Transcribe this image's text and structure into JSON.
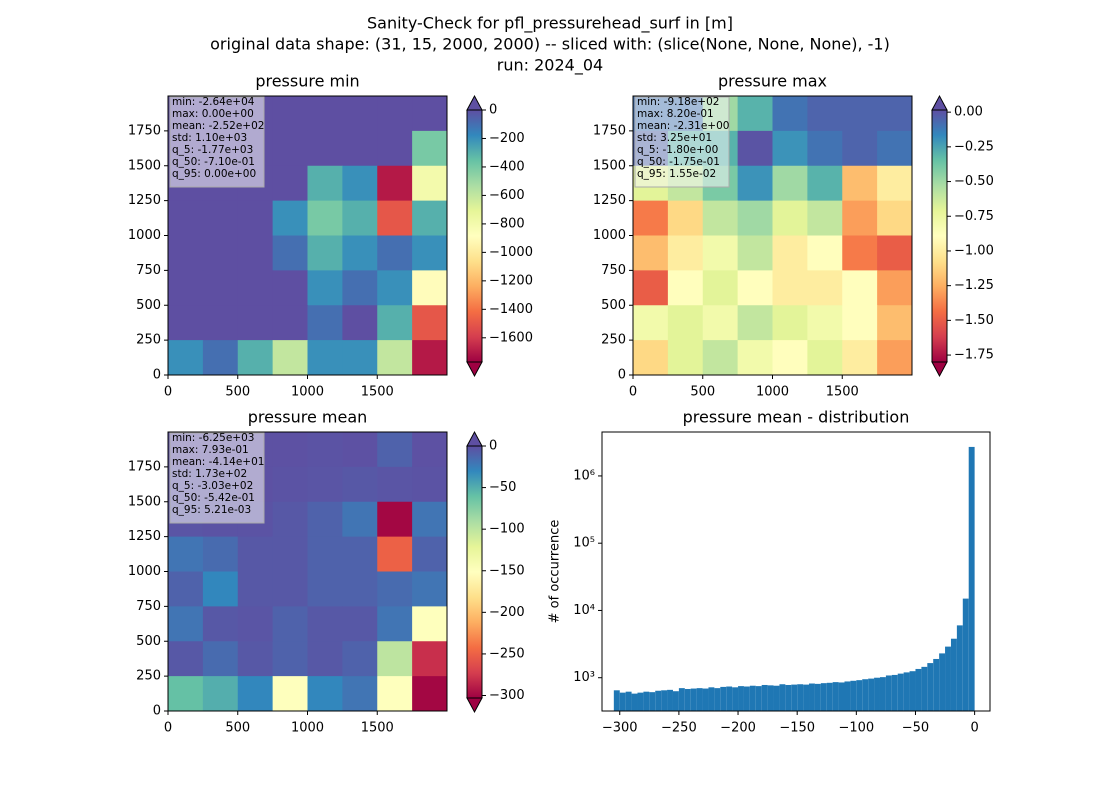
{
  "suptitle": [
    "Sanity-Check for pfl_pressurehead_surf in [m]",
    "original data shape: (31, 15, 2000, 2000) -- sliced with: (slice(None, None, None), -1)",
    "run: 2024_04"
  ],
  "chart_data": [
    {
      "type": "heatmap",
      "title": "pressure min",
      "stats": [
        "min: -2.64e+04",
        "max: 0.00e+00",
        "mean: -2.52e+02",
        "std: 1.10e+03",
        "q_5: -1.77e+03",
        "q_50: -7.10e-01",
        "q_95: 0.00e+00"
      ],
      "xlim": [
        0,
        2000
      ],
      "ylim": [
        0,
        2000
      ],
      "xticks": [
        0,
        500,
        1000,
        1500
      ],
      "yticks": [
        0,
        250,
        500,
        750,
        1000,
        1250,
        1500,
        1750
      ],
      "colormap": [
        "#9e0142",
        "#d53e4f",
        "#f46d43",
        "#fdae61",
        "#fee08b",
        "#ffffbf",
        "#e6f598",
        "#abdda4",
        "#66c2a5",
        "#3288bd",
        "#5e4fa2"
      ],
      "clim": [
        -1770,
        0
      ],
      "extend": "both",
      "cticks": [
        0,
        {
          "value": -200,
          "label": "−200"
        },
        {
          "value": -400,
          "label": "−400"
        },
        {
          "value": -600,
          "label": "−600"
        },
        {
          "value": -800,
          "label": "−800"
        },
        {
          "value": -1000,
          "label": "−1000"
        },
        {
          "value": -1200,
          "label": "−1200"
        },
        {
          "value": -1400,
          "label": "−1400"
        },
        {
          "value": -1600,
          "label": "−1600"
        }
      ],
      "z": [
        [
          0,
          0,
          0,
          0,
          0,
          0,
          0,
          0
        ],
        [
          0,
          0,
          0,
          0,
          0,
          0,
          0,
          -400
        ],
        [
          0,
          0,
          0,
          0,
          -300,
          -200,
          -1700,
          -800
        ],
        [
          0,
          0,
          0,
          -200,
          -400,
          -300,
          -1500,
          -300
        ],
        [
          0,
          0,
          0,
          -100,
          -300,
          -200,
          -100,
          -200
        ],
        [
          0,
          0,
          0,
          0,
          -200,
          -100,
          -200,
          -900
        ],
        [
          0,
          0,
          0,
          0,
          -100,
          0,
          -300,
          -1500
        ],
        [
          -200,
          -100,
          -300,
          -600,
          -200,
          -200,
          -600,
          -1700
        ]
      ]
    },
    {
      "type": "heatmap",
      "title": "pressure max",
      "stats": [
        "min: -9.18e+02",
        "max: 8.20e-01",
        "mean: -2.31e+00",
        "std: 3.25e+01",
        "q_5: -1.80e+00",
        "q_50: -1.75e-01",
        "q_95: 1.55e-02"
      ],
      "xlim": [
        0,
        2000
      ],
      "ylim": [
        0,
        2000
      ],
      "xticks": [
        0,
        500,
        1000,
        1500
      ],
      "yticks": [
        0,
        250,
        500,
        750,
        1000,
        1250,
        1500,
        1750
      ],
      "colormap": [
        "#9e0142",
        "#d53e4f",
        "#f46d43",
        "#fdae61",
        "#fee08b",
        "#ffffbf",
        "#e6f598",
        "#abdda4",
        "#66c2a5",
        "#3288bd",
        "#5e4fa2"
      ],
      "clim": [
        -1.8,
        0.0155
      ],
      "extend": "both",
      "cticks": [
        {
          "value": 0,
          "label": "0.00"
        },
        {
          "value": -0.25,
          "label": "−0.25"
        },
        {
          "value": -0.5,
          "label": "−0.50"
        },
        {
          "value": -0.75,
          "label": "−0.75"
        },
        {
          "value": -1,
          "label": "−1.00"
        },
        {
          "value": -1.25,
          "label": "−1.25"
        },
        {
          "value": -1.5,
          "label": "−1.50"
        },
        {
          "value": -1.75,
          "label": "−1.75"
        }
      ],
      "z": [
        [
          -0.1,
          -0.1,
          -0.5,
          -0.3,
          -0.1,
          -0.05,
          -0.05,
          -0.05
        ],
        [
          -0.05,
          -0.3,
          -0.3,
          0,
          -0.2,
          -0.1,
          -0.05,
          -0.1
        ],
        [
          -0.7,
          -0.6,
          -0.4,
          -0.2,
          -0.5,
          -0.3,
          -1.2,
          -1
        ],
        [
          -1.4,
          -1.1,
          -0.6,
          -0.5,
          -0.7,
          -0.6,
          -1.3,
          -1.1
        ],
        [
          -1.2,
          -1,
          -0.8,
          -0.6,
          -1,
          -0.9,
          -1.4,
          -1.5
        ],
        [
          -1.5,
          -0.9,
          -0.7,
          -0.9,
          -1,
          -1,
          -0.9,
          -1.3
        ],
        [
          -0.8,
          -0.7,
          -0.8,
          -0.6,
          -0.7,
          -0.8,
          -0.9,
          -1.2
        ],
        [
          -1.1,
          -0.7,
          -0.6,
          -0.8,
          -0.9,
          -0.7,
          -1,
          -1.3
        ]
      ]
    },
    {
      "type": "heatmap",
      "title": "pressure mean",
      "stats": [
        "min: -6.25e+03",
        "max: 7.93e-01",
        "mean: -4.14e+01",
        "std: 1.73e+02",
        "q_5: -3.03e+02",
        "q_50: -5.42e-01",
        "q_95: 5.21e-03"
      ],
      "xlim": [
        0,
        2000
      ],
      "ylim": [
        0,
        2000
      ],
      "xticks": [
        0,
        500,
        1000,
        1500
      ],
      "yticks": [
        0,
        250,
        500,
        750,
        1000,
        1250,
        1500,
        1750
      ],
      "colormap": [
        "#9e0142",
        "#d53e4f",
        "#f46d43",
        "#fdae61",
        "#fee08b",
        "#ffffbf",
        "#e6f598",
        "#abdda4",
        "#66c2a5",
        "#3288bd",
        "#5e4fa2"
      ],
      "clim": [
        -303,
        0.00521
      ],
      "extend": "both",
      "cticks": [
        0,
        {
          "value": -50,
          "label": "−50"
        },
        {
          "value": -100,
          "label": "−100"
        },
        {
          "value": -150,
          "label": "−150"
        },
        {
          "value": -200,
          "label": "−200"
        },
        {
          "value": -250,
          "label": "−250"
        },
        {
          "value": -300,
          "label": "−300"
        }
      ],
      "z": [
        [
          -1,
          -1,
          -1,
          -1,
          -2,
          -1,
          -10,
          -1
        ],
        [
          -2,
          -2,
          -1,
          -2,
          -3,
          -5,
          -3,
          -2
        ],
        [
          -3,
          -2,
          -2,
          -5,
          -10,
          -20,
          -300,
          -20
        ],
        [
          -20,
          -15,
          -5,
          -5,
          -10,
          -10,
          -250,
          -10
        ],
        [
          -10,
          -30,
          -5,
          -5,
          -10,
          -10,
          -15,
          -20
        ],
        [
          -20,
          -5,
          -3,
          -10,
          -5,
          -5,
          -20,
          -150
        ],
        [
          -5,
          -15,
          -5,
          -10,
          -5,
          -10,
          -100,
          -280
        ],
        [
          -60,
          -50,
          -30,
          -150,
          -30,
          -20,
          -150,
          -300
        ]
      ]
    },
    {
      "type": "histogram",
      "title": "pressure mean - distribution",
      "ylabel": "# of occurrence",
      "color": "#1f77b4",
      "log_y": true,
      "xlim": [
        -315,
        13
      ],
      "ylim": [
        320,
        4500000
      ],
      "xticks": [
        {
          "value": -300,
          "label": "−300"
        },
        {
          "value": -250,
          "label": "−250"
        },
        {
          "value": -200,
          "label": "−200"
        },
        {
          "value": -150,
          "label": "−150"
        },
        {
          "value": -100,
          "label": "−100"
        },
        {
          "value": -50,
          "label": "−50"
        },
        0
      ],
      "yticks": [
        {
          "value": 1000,
          "label": "10³"
        },
        {
          "value": 10000,
          "label": "10⁴"
        },
        {
          "value": 100000,
          "label": "10⁵"
        },
        {
          "value": 1000000,
          "label": "10⁶"
        }
      ],
      "bins": [
        -305,
        -300,
        -295,
        -290,
        -285,
        -280,
        -275,
        -270,
        -265,
        -260,
        -255,
        -250,
        -245,
        -240,
        -235,
        -230,
        -225,
        -220,
        -215,
        -210,
        -205,
        -200,
        -195,
        -190,
        -185,
        -180,
        -175,
        -170,
        -165,
        -160,
        -155,
        -150,
        -145,
        -140,
        -135,
        -130,
        -125,
        -120,
        -115,
        -110,
        -105,
        -100,
        -95,
        -90,
        -85,
        -80,
        -75,
        -70,
        -65,
        -60,
        -55,
        -50,
        -45,
        -40,
        -35,
        -30,
        -25,
        -20,
        -15,
        -10,
        -5,
        0
      ],
      "values": [
        650,
        600,
        620,
        580,
        600,
        620,
        610,
        640,
        650,
        660,
        630,
        700,
        680,
        690,
        700,
        690,
        720,
        700,
        730,
        740,
        720,
        750,
        740,
        760,
        750,
        780,
        770,
        760,
        800,
        780,
        790,
        800,
        790,
        820,
        810,
        830,
        840,
        860,
        850,
        880,
        900,
        920,
        950,
        970,
        1000,
        1020,
        1080,
        1100,
        1150,
        1200,
        1250,
        1350,
        1450,
        1650,
        1900,
        2300,
        2900,
        3800,
        6000,
        15000,
        2700000
      ]
    }
  ]
}
